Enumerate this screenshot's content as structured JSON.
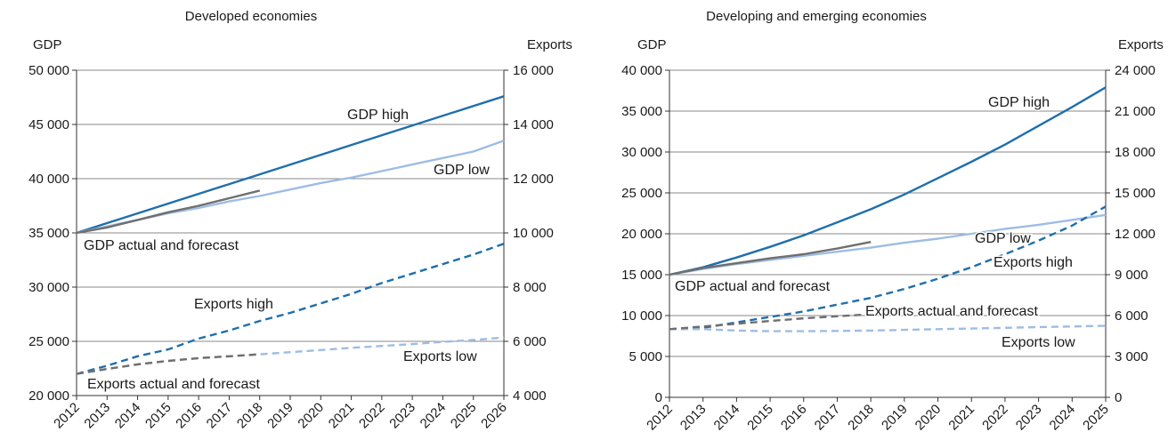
{
  "chart_data": [
    {
      "type": "line",
      "title": "Developed economies",
      "left_axis_label": "GDP",
      "right_axis_label": "Exports",
      "x": [
        2012,
        2013,
        2014,
        2015,
        2016,
        2017,
        2018,
        2019,
        2020,
        2021,
        2022,
        2023,
        2024,
        2025,
        2026
      ],
      "x_tick_labels": [
        "2012",
        "2013",
        "2014",
        "2015",
        "2016",
        "2017",
        "2018",
        "2019",
        "2020",
        "2021",
        "2022",
        "2023",
        "2024",
        "2025",
        "2026"
      ],
      "ylim_left": [
        20000,
        50000
      ],
      "ylim_right": [
        4000,
        16000
      ],
      "left_ticks": [
        20000,
        25000,
        30000,
        35000,
        40000,
        45000,
        50000
      ],
      "left_tick_labels": [
        "20 000",
        "25 000",
        "30 000",
        "35 000",
        "40 000",
        "45 000",
        "50 000"
      ],
      "right_ticks": [
        4000,
        6000,
        8000,
        10000,
        12000,
        14000,
        16000
      ],
      "right_tick_labels": [
        "4 000",
        "6 000",
        "8 000",
        "10 000",
        "12 000",
        "14 000",
        "16 000"
      ],
      "grid": "horizontal",
      "series": [
        {
          "name": "GDP high",
          "axis": "left",
          "style": "solid",
          "color": "#1f6fad",
          "x": [
            2012,
            2026
          ],
          "values": [
            35000,
            47600
          ]
        },
        {
          "name": "GDP low",
          "axis": "left",
          "style": "solid",
          "color": "#9dbde3",
          "x": [
            2012,
            2013,
            2014,
            2015,
            2016,
            2017,
            2018,
            2019,
            2020,
            2021,
            2022,
            2023,
            2024,
            2025,
            2026
          ],
          "values": [
            35000,
            35600,
            36200,
            36800,
            37300,
            37900,
            38400,
            39000,
            39600,
            40100,
            40700,
            41300,
            41900,
            42500,
            43500
          ]
        },
        {
          "name": "GDP actual and forecast",
          "axis": "left",
          "style": "solid",
          "color": "#6f6f6f",
          "x": [
            2012,
            2013,
            2014,
            2015,
            2016,
            2017,
            2018
          ],
          "values": [
            35000,
            35500,
            36200,
            36900,
            37500,
            38200,
            38900
          ]
        },
        {
          "name": "Exports high",
          "axis": "right",
          "style": "dashed",
          "color": "#1f6fad",
          "x": [
            2012,
            2013,
            2014,
            2015,
            2016,
            2017,
            2018,
            2019,
            2020,
            2021,
            2022,
            2023,
            2024,
            2025,
            2026
          ],
          "values": [
            4800,
            5100,
            5450,
            5700,
            6100,
            6400,
            6750,
            7050,
            7400,
            7750,
            8150,
            8500,
            8850,
            9200,
            9600
          ]
        },
        {
          "name": "Exports low",
          "axis": "right",
          "style": "dashed",
          "color": "#9dbde3",
          "x": [
            2012,
            2013,
            2014,
            2015,
            2016,
            2017,
            2018,
            2019,
            2020,
            2021,
            2022,
            2023,
            2024,
            2025,
            2026
          ],
          "values": [
            4800,
            4980,
            5150,
            5280,
            5380,
            5450,
            5520,
            5600,
            5680,
            5760,
            5830,
            5900,
            5980,
            6050,
            6140
          ]
        },
        {
          "name": "Exports actual and forecast",
          "axis": "right",
          "style": "dashed",
          "color": "#6f6f6f",
          "x": [
            2012,
            2013,
            2014,
            2015,
            2016,
            2017,
            2018
          ],
          "values": [
            4800,
            4980,
            5150,
            5280,
            5380,
            5450,
            5520
          ]
        }
      ]
    },
    {
      "type": "line",
      "title": "Developing and emerging economies",
      "left_axis_label": "GDP",
      "right_axis_label": "Exports",
      "x": [
        2012,
        2013,
        2014,
        2015,
        2016,
        2017,
        2018,
        2019,
        2020,
        2021,
        2022,
        2023,
        2024,
        2025
      ],
      "x_tick_labels": [
        "2012",
        "2013",
        "2014",
        "2015",
        "2016",
        "2017",
        "2018",
        "2019",
        "2020",
        "2021",
        "2022",
        "2023",
        "2024",
        "2025"
      ],
      "ylim_left": [
        0,
        40000
      ],
      "ylim_right": [
        0,
        24000
      ],
      "left_ticks": [
        0,
        5000,
        10000,
        15000,
        20000,
        25000,
        30000,
        35000,
        40000
      ],
      "left_tick_labels": [
        "0",
        "5 000",
        "10 000",
        "15 000",
        "20 000",
        "25 000",
        "30 000",
        "35 000",
        "40 000"
      ],
      "right_ticks": [
        0,
        3000,
        6000,
        9000,
        12000,
        15000,
        18000,
        21000,
        24000
      ],
      "right_tick_labels": [
        "0",
        "3 000",
        "6 000",
        "9 000",
        "12 000",
        "15 000",
        "18 000",
        "21 000",
        "24 000"
      ],
      "grid": "horizontal",
      "series": [
        {
          "name": "GDP high",
          "axis": "left",
          "style": "solid",
          "color": "#1f6fad",
          "x": [
            2012,
            2013,
            2014,
            2015,
            2016,
            2017,
            2018,
            2019,
            2020,
            2021,
            2022,
            2023,
            2024,
            2025
          ],
          "values": [
            15000,
            15900,
            17100,
            18400,
            19800,
            21400,
            23000,
            24800,
            26800,
            28800,
            30900,
            33200,
            35500,
            37900
          ]
        },
        {
          "name": "GDP low",
          "axis": "left",
          "style": "solid",
          "color": "#9dbde3",
          "x": [
            2012,
            2013,
            2014,
            2015,
            2016,
            2017,
            2018,
            2019,
            2020,
            2021,
            2022,
            2023,
            2024,
            2025
          ],
          "values": [
            15000,
            15700,
            16300,
            16800,
            17300,
            17800,
            18300,
            18900,
            19400,
            20000,
            20600,
            21100,
            21700,
            22300
          ]
        },
        {
          "name": "GDP actual and forecast",
          "axis": "left",
          "style": "solid",
          "color": "#6f6f6f",
          "x": [
            2012,
            2013,
            2014,
            2015,
            2016,
            2017,
            2018
          ],
          "values": [
            15000,
            15800,
            16400,
            17000,
            17500,
            18200,
            19000
          ]
        },
        {
          "name": "Exports high",
          "axis": "right",
          "style": "dashed",
          "color": "#1f6fad",
          "x": [
            2012,
            2013,
            2014,
            2015,
            2016,
            2017,
            2018,
            2019,
            2020,
            2021,
            2022,
            2023,
            2024,
            2025
          ],
          "values": [
            5000,
            5100,
            5500,
            5900,
            6300,
            6800,
            7300,
            7950,
            8700,
            9550,
            10500,
            11500,
            12600,
            14000
          ]
        },
        {
          "name": "Exports low",
          "axis": "right",
          "style": "dashed",
          "color": "#9dbde3",
          "x": [
            2012,
            2013,
            2014,
            2015,
            2016,
            2017,
            2018,
            2019,
            2020,
            2021,
            2022,
            2023,
            2024,
            2025
          ],
          "values": [
            5000,
            5000,
            4900,
            4850,
            4850,
            4870,
            4900,
            4950,
            5000,
            5050,
            5100,
            5150,
            5200,
            5250
          ]
        },
        {
          "name": "Exports actual and forecast",
          "axis": "right",
          "style": "dashed",
          "color": "#6f6f6f",
          "x": [
            2012,
            2013,
            2014,
            2015,
            2016,
            2017,
            2018
          ],
          "values": [
            5000,
            5200,
            5400,
            5600,
            5800,
            5950,
            6100
          ]
        }
      ]
    }
  ]
}
